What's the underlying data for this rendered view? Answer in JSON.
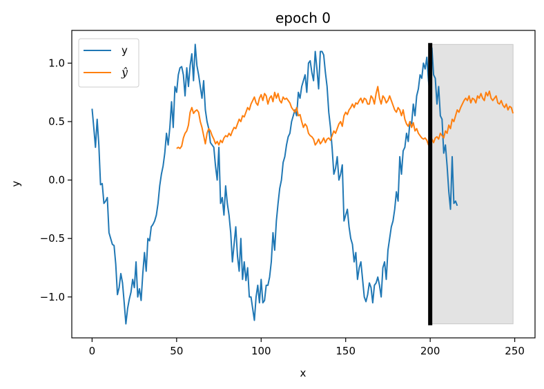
{
  "chart_data": {
    "type": "line",
    "title": "epoch 0",
    "xlabel": "x",
    "ylabel": "y",
    "xlim": [
      -12,
      262
    ],
    "ylim": [
      -1.35,
      1.28
    ],
    "xticks": [
      0,
      50,
      100,
      150,
      200,
      250
    ],
    "yticks": [
      -1.0,
      -0.5,
      0.0,
      0.5,
      1.0
    ],
    "xtick_labels": [
      "0",
      "50",
      "100",
      "150",
      "200",
      "250"
    ],
    "ytick_labels": [
      "−1.0",
      "−0.5",
      "0.0",
      "0.5",
      "1.0"
    ],
    "legend": {
      "placement": "top-left",
      "entries": [
        "y",
        "ŷ"
      ]
    },
    "grid": false,
    "series": [
      {
        "name": "y",
        "color": "#1f77b4",
        "x_start": 0,
        "values": [
          0.61,
          0.45,
          0.28,
          0.52,
          0.3,
          -0.04,
          -0.03,
          -0.2,
          -0.18,
          -0.15,
          -0.45,
          -0.5,
          -0.55,
          -0.56,
          -0.72,
          -0.98,
          -0.92,
          -0.8,
          -0.88,
          -1.05,
          -1.23,
          -1.1,
          -1.02,
          -0.96,
          -0.85,
          -0.92,
          -0.7,
          -1.0,
          -0.93,
          -1.03,
          -0.8,
          -0.62,
          -0.78,
          -0.5,
          -0.52,
          -0.4,
          -0.38,
          -0.35,
          -0.3,
          -0.2,
          -0.05,
          0.05,
          0.12,
          0.23,
          0.4,
          0.3,
          0.45,
          0.67,
          0.45,
          0.8,
          0.75,
          0.9,
          0.96,
          0.97,
          0.9,
          0.72,
          0.96,
          0.8,
          0.98,
          1.08,
          0.85,
          1.16,
          0.98,
          0.9,
          0.8,
          0.7,
          0.85,
          0.6,
          0.5,
          0.44,
          0.32,
          0.3,
          0.28,
          0.12,
          0.0,
          0.28,
          -0.2,
          -0.15,
          -0.3,
          -0.05,
          -0.2,
          -0.3,
          -0.45,
          -0.7,
          -0.55,
          -0.4,
          -0.65,
          -0.78,
          -0.5,
          -0.85,
          -0.7,
          -0.86,
          -0.75,
          -1.0,
          -1.0,
          -1.1,
          -1.2,
          -1.0,
          -0.9,
          -1.05,
          -0.85,
          -1.05,
          -1.03,
          -0.9,
          -0.9,
          -0.83,
          -0.7,
          -0.45,
          -0.6,
          -0.35,
          -0.2,
          -0.07,
          0.0,
          0.15,
          0.2,
          0.3,
          0.37,
          0.4,
          0.5,
          0.55,
          0.6,
          0.55,
          0.75,
          0.7,
          0.8,
          0.85,
          0.9,
          0.75,
          1.0,
          1.02,
          0.92,
          0.85,
          1.1,
          0.95,
          0.78,
          1.1,
          1.1,
          1.07,
          0.92,
          0.8,
          0.58,
          0.45,
          0.27,
          0.05,
          0.1,
          0.2,
          0.0,
          0.05,
          0.13,
          -0.35,
          -0.3,
          -0.25,
          -0.4,
          -0.5,
          -0.55,
          -0.7,
          -0.62,
          -0.85,
          -0.75,
          -0.7,
          -0.85,
          -1.0,
          -1.04,
          -0.98,
          -0.88,
          -0.92,
          -1.05,
          -0.9,
          -0.88,
          -0.83,
          -0.9,
          -1.0,
          -0.75,
          -0.7,
          -0.85,
          -0.6,
          -0.5,
          -0.4,
          -0.35,
          -0.25,
          -0.1,
          -0.18,
          0.2,
          0.05,
          0.25,
          0.28,
          0.4,
          0.33,
          0.5,
          0.48,
          0.65,
          0.55,
          0.72,
          0.78,
          0.9,
          0.87,
          1.0,
          0.95,
          1.05,
          0.85,
          0.7,
          1.13,
          0.9,
          0.87,
          0.65,
          0.8,
          0.55,
          0.52,
          0.23,
          0.3,
          0.12,
          -0.1,
          -0.25,
          0.2,
          -0.2,
          -0.18,
          -0.22
        ]
      },
      {
        "name": "ŷ",
        "color": "#ff7f0e",
        "x_start": 50,
        "values": [
          0.27,
          0.28,
          0.27,
          0.29,
          0.36,
          0.4,
          0.42,
          0.47,
          0.58,
          0.62,
          0.57,
          0.59,
          0.6,
          0.58,
          0.5,
          0.45,
          0.38,
          0.31,
          0.4,
          0.44,
          0.42,
          0.38,
          0.35,
          0.31,
          0.33,
          0.3,
          0.34,
          0.32,
          0.36,
          0.38,
          0.37,
          0.4,
          0.38,
          0.42,
          0.45,
          0.44,
          0.48,
          0.52,
          0.5,
          0.55,
          0.54,
          0.58,
          0.62,
          0.6,
          0.65,
          0.68,
          0.71,
          0.66,
          0.64,
          0.7,
          0.73,
          0.68,
          0.74,
          0.72,
          0.65,
          0.7,
          0.72,
          0.67,
          0.75,
          0.7,
          0.74,
          0.68,
          0.66,
          0.71,
          0.69,
          0.7,
          0.68,
          0.66,
          0.62,
          0.6,
          0.58,
          0.62,
          0.55,
          0.56,
          0.5,
          0.45,
          0.48,
          0.46,
          0.4,
          0.38,
          0.37,
          0.35,
          0.3,
          0.32,
          0.35,
          0.31,
          0.33,
          0.36,
          0.32,
          0.35,
          0.36,
          0.34,
          0.38,
          0.42,
          0.4,
          0.44,
          0.48,
          0.5,
          0.46,
          0.55,
          0.58,
          0.56,
          0.6,
          0.62,
          0.65,
          0.62,
          0.66,
          0.65,
          0.68,
          0.7,
          0.66,
          0.7,
          0.69,
          0.65,
          0.65,
          0.72,
          0.7,
          0.65,
          0.74,
          0.8,
          0.7,
          0.65,
          0.72,
          0.7,
          0.66,
          0.68,
          0.72,
          0.68,
          0.64,
          0.6,
          0.58,
          0.62,
          0.6,
          0.55,
          0.6,
          0.52,
          0.48,
          0.46,
          0.5,
          0.45,
          0.49,
          0.42,
          0.44,
          0.4,
          0.38,
          0.36,
          0.35,
          0.36,
          0.34,
          0.3,
          0.33,
          0.35,
          0.32,
          0.36,
          0.37,
          0.35,
          0.4,
          0.38,
          0.36,
          0.42,
          0.4,
          0.47,
          0.44,
          0.52,
          0.5,
          0.55,
          0.6,
          0.58,
          0.62,
          0.65,
          0.68,
          0.7,
          0.68,
          0.72,
          0.66,
          0.7,
          0.69,
          0.66,
          0.72,
          0.7,
          0.74,
          0.7,
          0.68,
          0.75,
          0.72,
          0.76,
          0.7,
          0.68,
          0.7,
          0.72,
          0.66,
          0.65,
          0.68,
          0.64,
          0.62,
          0.65,
          0.6,
          0.63,
          0.62,
          0.57
        ]
      }
    ],
    "annotations": {
      "vertical_line_x": 200,
      "shaded_region_x": [
        200,
        249
      ],
      "shaded_region_y": [
        -1.23,
        1.16
      ],
      "shaded_color": "#e3e3e3",
      "vertical_line_color": "#000000"
    }
  }
}
